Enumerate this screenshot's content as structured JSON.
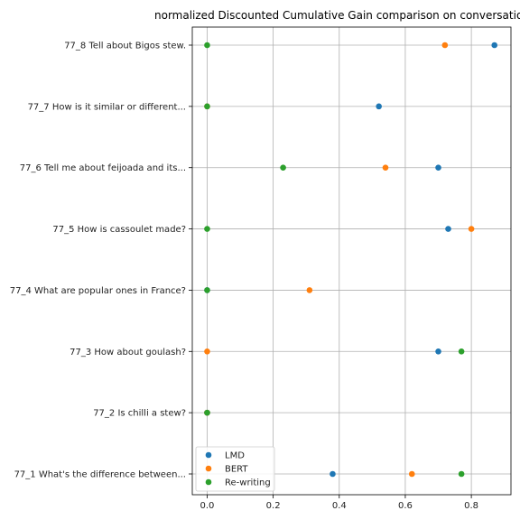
{
  "chart_data": {
    "type": "scatter",
    "title": "normalized Discounted Cumulative Gain comparison on conversation",
    "xlabel": "",
    "ylabel": "",
    "xlim": [
      -0.045,
      0.92
    ],
    "x_ticks": [
      "0.0",
      "0.2",
      "0.4",
      "0.6",
      "0.8"
    ],
    "x_tick_values": [
      0.0,
      0.2,
      0.4,
      0.6,
      0.8
    ],
    "categories": [
      "77_1 What's the difference between...",
      "77_2 Is chilli a stew?",
      "77_3 How about goulash?",
      "77_4 What are popular ones in France?",
      "77_5 How is cassoulet made?",
      "77_6 Tell me about feijoada and its...",
      "77_7 How is it similar or different...",
      "77_8 Tell about Bigos stew."
    ],
    "grid": true,
    "legend_position": "lower-left",
    "series": [
      {
        "name": "LMD",
        "color": "#1f77b4",
        "values": [
          0.38,
          0.0,
          0.7,
          0.0,
          0.73,
          0.7,
          0.52,
          0.87
        ]
      },
      {
        "name": "BERT",
        "color": "#ff7f0e",
        "values": [
          0.62,
          0.0,
          0.0,
          0.31,
          0.8,
          0.54,
          0.0,
          0.72
        ]
      },
      {
        "name": "Re-writing",
        "color": "#2ca02c",
        "values": [
          0.77,
          0.0,
          0.77,
          0.0,
          0.0,
          0.23,
          0.0,
          0.0
        ]
      }
    ]
  }
}
